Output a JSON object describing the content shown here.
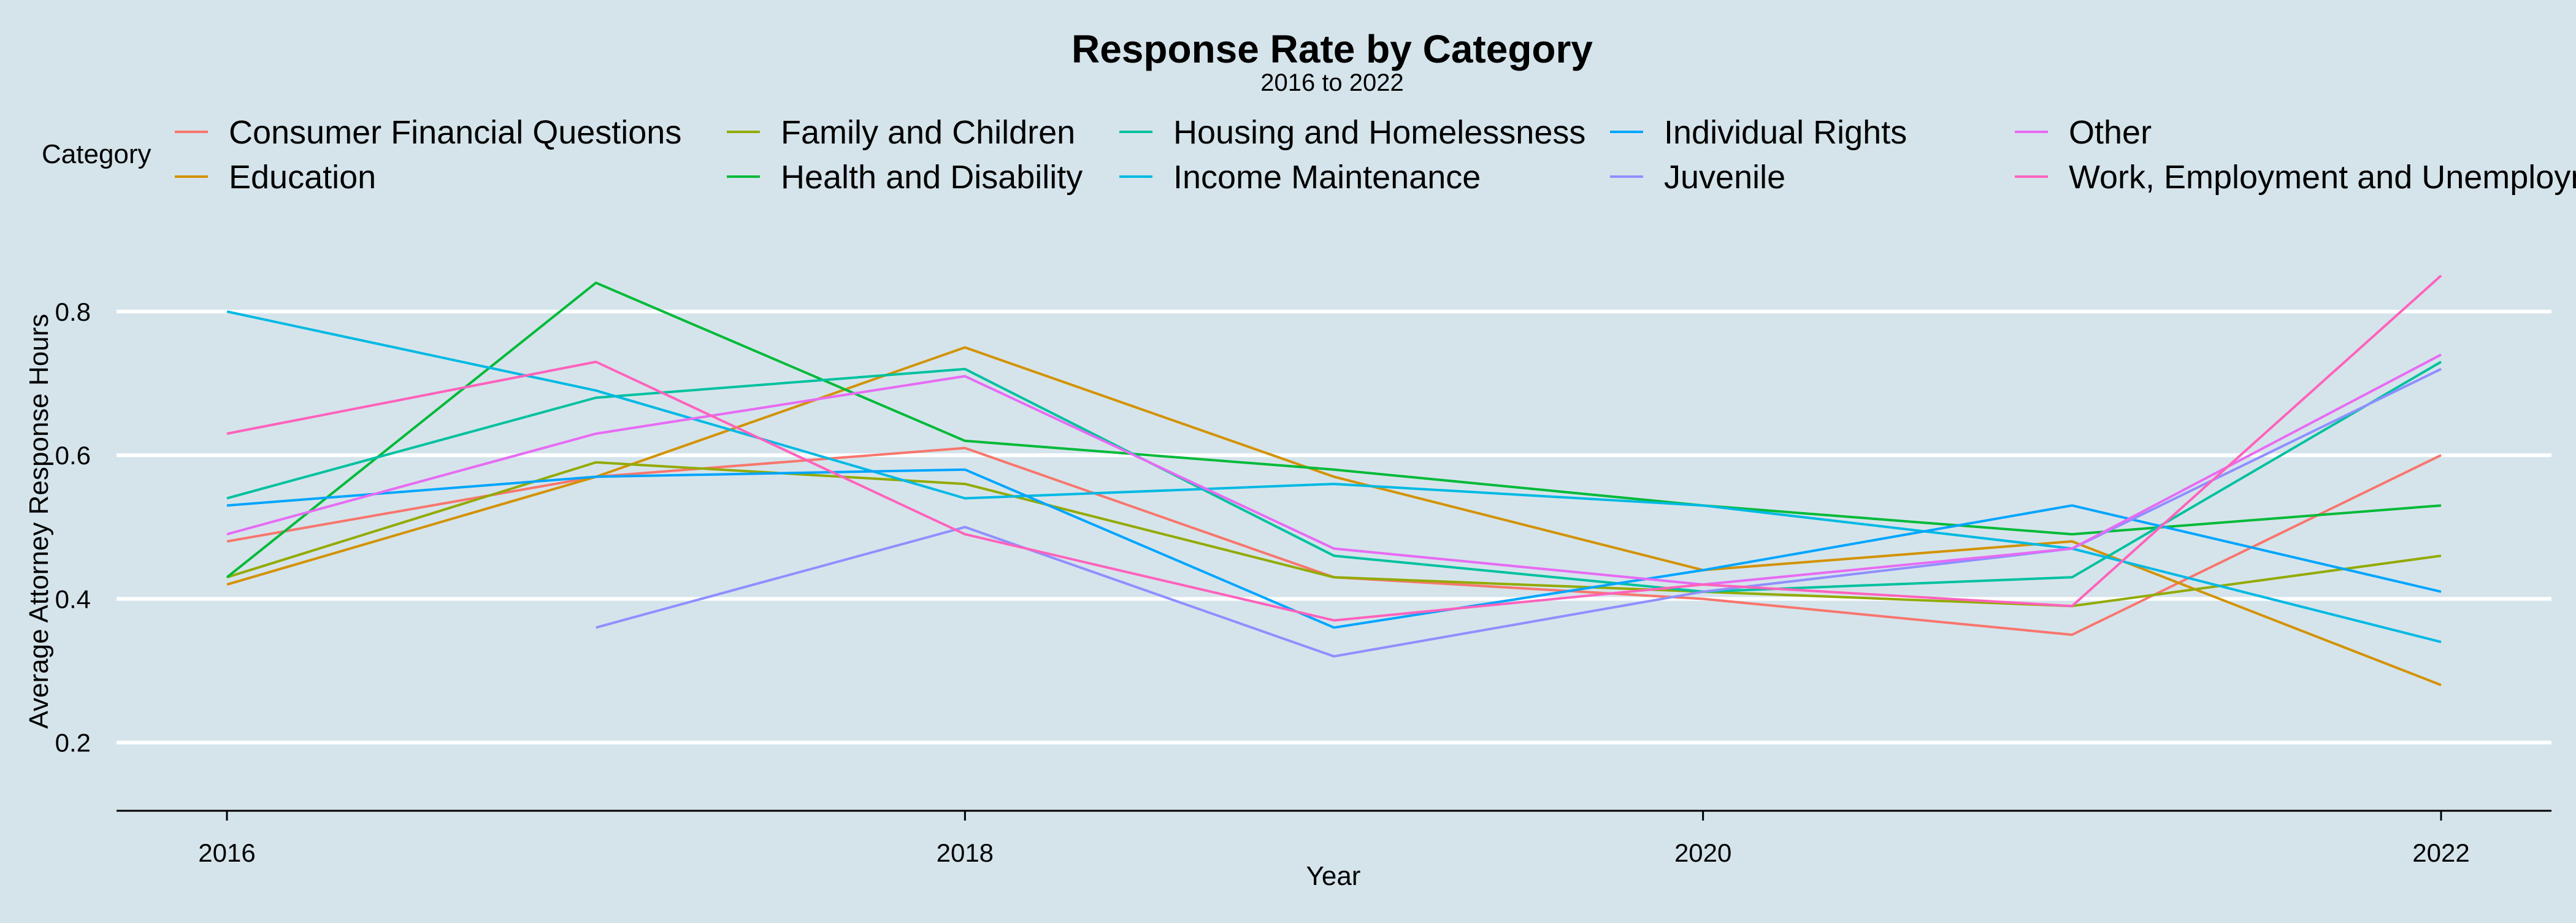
{
  "chart_data": {
    "type": "line",
    "title": "Response Rate by Category",
    "subtitle": "2016 to 2022",
    "xlabel": "Year",
    "ylabel": "Average Attorney Response Hours",
    "legend_title": "Category",
    "legend_position": "top",
    "grid": true,
    "xlim": [
      2015.85,
      2022.2
    ],
    "ylim": [
      0.105,
      0.905
    ],
    "x_ticks": [
      2016,
      2018,
      2020,
      2022
    ],
    "y_ticks": [
      0.2,
      0.4,
      0.6,
      0.8
    ],
    "x_tick_labels": [
      "2016",
      "2018",
      "2020",
      "2022"
    ],
    "y_tick_labels": [
      "0.2",
      "0.4",
      "0.6",
      "0.8"
    ],
    "series": [
      {
        "name": "Consumer Financial Questions",
        "color": "#F8766D",
        "x": [
          2016,
          2017,
          2018,
          2019,
          2020,
          2021,
          2022
        ],
        "values": [
          0.48,
          0.57,
          0.61,
          0.43,
          0.4,
          0.35,
          0.6
        ]
      },
      {
        "name": "Education",
        "color": "#D39200",
        "x": [
          2016,
          2017,
          2018,
          2019,
          2020,
          2021,
          2022
        ],
        "values": [
          0.42,
          0.57,
          0.75,
          0.57,
          0.44,
          0.48,
          0.28
        ]
      },
      {
        "name": "Family and Children",
        "color": "#93AA00",
        "x": [
          2016,
          2017,
          2018,
          2019,
          2020,
          2021,
          2022
        ],
        "values": [
          0.43,
          0.59,
          0.56,
          0.43,
          0.41,
          0.39,
          0.46
        ]
      },
      {
        "name": "Health and Disability",
        "color": "#00BA38",
        "x": [
          2016,
          2017,
          2018,
          2019,
          2020,
          2021,
          2022
        ],
        "values": [
          0.43,
          0.84,
          0.62,
          0.58,
          0.53,
          0.49,
          0.53
        ]
      },
      {
        "name": "Housing and Homelessness",
        "color": "#00C19F",
        "x": [
          2016,
          2017,
          2018,
          2019,
          2020,
          2021,
          2022
        ],
        "values": [
          0.54,
          0.68,
          0.72,
          0.46,
          0.41,
          0.43,
          0.73
        ]
      },
      {
        "name": "Income Maintenance",
        "color": "#00B9E3",
        "x": [
          2016,
          2017,
          2018,
          2019,
          2020,
          2021,
          2022
        ],
        "values": [
          0.8,
          0.69,
          0.54,
          0.56,
          0.53,
          0.47,
          0.34
        ]
      },
      {
        "name": "Individual Rights",
        "color": "#00A5FF",
        "x": [
          2016,
          2017,
          2018,
          2019,
          2020,
          2021,
          2022
        ],
        "values": [
          0.53,
          0.57,
          0.58,
          0.36,
          0.44,
          0.53,
          0.41
        ]
      },
      {
        "name": "Juvenile",
        "color": "#8F8FFF",
        "x": [
          2017,
          2018,
          2019,
          2020,
          2021,
          2022
        ],
        "values": [
          0.36,
          0.5,
          0.32,
          0.41,
          0.47,
          0.72
        ]
      },
      {
        "name": "Other",
        "color": "#E76BF3",
        "x": [
          2016,
          2017,
          2018,
          2019,
          2020,
          2021,
          2022
        ],
        "values": [
          0.49,
          0.63,
          0.71,
          0.47,
          0.42,
          0.47,
          0.74
        ]
      },
      {
        "name": "Work, Employment and Unemployment",
        "color": "#FF62BC",
        "x": [
          2016,
          2017,
          2018,
          2019,
          2020,
          2021,
          2022
        ],
        "values": [
          0.63,
          0.73,
          0.49,
          0.37,
          0.42,
          0.39,
          0.85
        ]
      }
    ]
  }
}
